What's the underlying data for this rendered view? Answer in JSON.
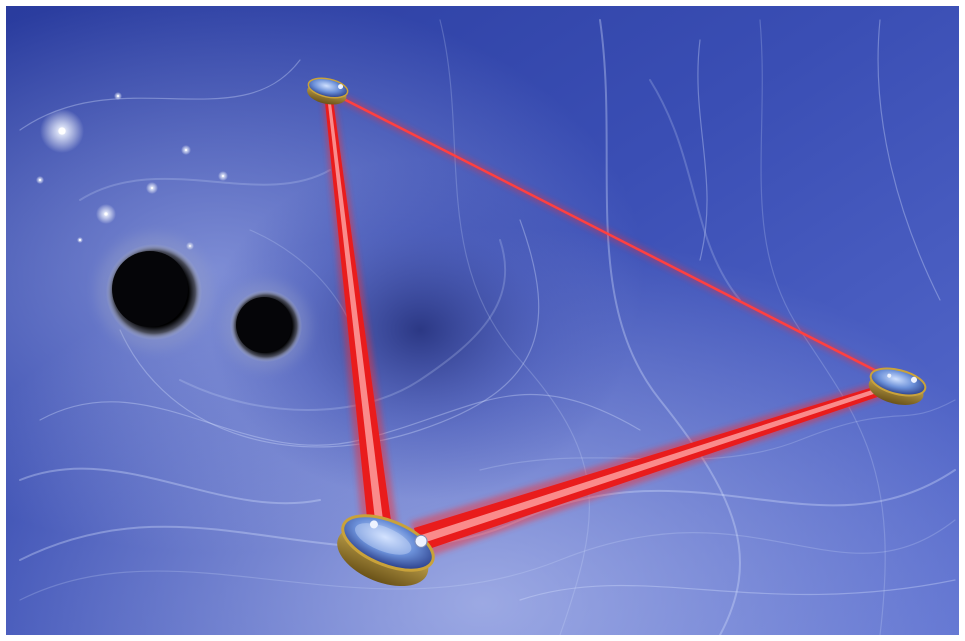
{
  "scene": {
    "subject": "gravitational-wave-space-observatory-illustration",
    "elements": {
      "black_holes": 2,
      "spacecraft": 3,
      "laser_links": 3,
      "stars": 9
    },
    "colors": {
      "space_deep": "#1e2f8a",
      "space_mid": "#3f52b8",
      "space_light": "#8a9be0",
      "wave_line": "#d8e2ff",
      "laser": "#ff2a2a",
      "laser_core": "#ffb0b0",
      "black_hole": "#050508",
      "black_hole_rim": "#8a8fa0",
      "dish_face": "#6a8fd8",
      "dish_rim": "#c9a23a",
      "border": "#ffffff"
    }
  }
}
